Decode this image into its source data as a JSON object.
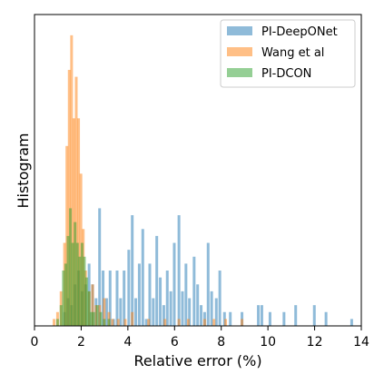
{
  "chart_data": {
    "type": "bar",
    "title": "",
    "xlabel": "Relative error (%)",
    "ylabel": "Histogram",
    "xlim": [
      0,
      14
    ],
    "ylim": [
      0,
      45
    ],
    "x_ticks": [
      "0",
      "2",
      "4",
      "6",
      "8",
      "10",
      "12",
      "14"
    ],
    "x_tick_values": [
      0,
      2,
      4,
      6,
      8,
      10,
      12,
      14
    ],
    "grid": false,
    "legend_position": "top-right",
    "bin_width": 0.14,
    "series": [
      {
        "name": "PI-DeepONet",
        "color": "#1f77b4",
        "bins": [
          {
            "x": 1.3,
            "v": 2
          },
          {
            "x": 1.45,
            "v": 4
          },
          {
            "x": 1.6,
            "v": 3
          },
          {
            "x": 1.75,
            "v": 6
          },
          {
            "x": 1.9,
            "v": 8
          },
          {
            "x": 2.05,
            "v": 5
          },
          {
            "x": 2.2,
            "v": 6
          },
          {
            "x": 2.35,
            "v": 9
          },
          {
            "x": 2.5,
            "v": 6
          },
          {
            "x": 2.65,
            "v": 4
          },
          {
            "x": 2.8,
            "v": 17
          },
          {
            "x": 2.95,
            "v": 8
          },
          {
            "x": 3.1,
            "v": 4
          },
          {
            "x": 3.25,
            "v": 8
          },
          {
            "x": 3.4,
            "v": 1
          },
          {
            "x": 3.55,
            "v": 8
          },
          {
            "x": 3.7,
            "v": 4
          },
          {
            "x": 3.85,
            "v": 8
          },
          {
            "x": 4.05,
            "v": 11
          },
          {
            "x": 4.2,
            "v": 16
          },
          {
            "x": 4.35,
            "v": 4
          },
          {
            "x": 4.5,
            "v": 9
          },
          {
            "x": 4.65,
            "v": 14
          },
          {
            "x": 4.8,
            "v": 1
          },
          {
            "x": 4.95,
            "v": 9
          },
          {
            "x": 5.1,
            "v": 4
          },
          {
            "x": 5.25,
            "v": 13
          },
          {
            "x": 5.4,
            "v": 7
          },
          {
            "x": 5.55,
            "v": 3
          },
          {
            "x": 5.7,
            "v": 8
          },
          {
            "x": 5.85,
            "v": 5
          },
          {
            "x": 6.0,
            "v": 12
          },
          {
            "x": 6.2,
            "v": 16
          },
          {
            "x": 6.35,
            "v": 5
          },
          {
            "x": 6.5,
            "v": 9
          },
          {
            "x": 6.65,
            "v": 4
          },
          {
            "x": 6.85,
            "v": 10
          },
          {
            "x": 7.0,
            "v": 6
          },
          {
            "x": 7.15,
            "v": 3
          },
          {
            "x": 7.3,
            "v": 2
          },
          {
            "x": 7.45,
            "v": 12
          },
          {
            "x": 7.6,
            "v": 5
          },
          {
            "x": 7.8,
            "v": 4
          },
          {
            "x": 7.95,
            "v": 8
          },
          {
            "x": 8.15,
            "v": 2
          },
          {
            "x": 8.4,
            "v": 2
          },
          {
            "x": 8.9,
            "v": 2
          },
          {
            "x": 9.6,
            "v": 3
          },
          {
            "x": 9.75,
            "v": 3
          },
          {
            "x": 10.1,
            "v": 2
          },
          {
            "x": 10.7,
            "v": 2
          },
          {
            "x": 11.2,
            "v": 3
          },
          {
            "x": 12.0,
            "v": 3
          },
          {
            "x": 12.5,
            "v": 2
          },
          {
            "x": 13.6,
            "v": 1
          }
        ]
      },
      {
        "name": "Wang et al",
        "color": "#ff7f0e",
        "bins": [
          {
            "x": 0.85,
            "v": 1
          },
          {
            "x": 1.0,
            "v": 2
          },
          {
            "x": 1.15,
            "v": 5
          },
          {
            "x": 1.3,
            "v": 12
          },
          {
            "x": 1.4,
            "v": 26
          },
          {
            "x": 1.5,
            "v": 37
          },
          {
            "x": 1.6,
            "v": 42
          },
          {
            "x": 1.7,
            "v": 30
          },
          {
            "x": 1.8,
            "v": 36
          },
          {
            "x": 1.9,
            "v": 30
          },
          {
            "x": 2.0,
            "v": 22
          },
          {
            "x": 2.1,
            "v": 14
          },
          {
            "x": 2.2,
            "v": 8
          },
          {
            "x": 2.35,
            "v": 5
          },
          {
            "x": 2.5,
            "v": 6
          },
          {
            "x": 2.65,
            "v": 3
          },
          {
            "x": 2.8,
            "v": 3
          },
          {
            "x": 3.0,
            "v": 4
          },
          {
            "x": 3.2,
            "v": 2
          },
          {
            "x": 3.35,
            "v": 1
          },
          {
            "x": 3.6,
            "v": 1
          },
          {
            "x": 3.9,
            "v": 1
          },
          {
            "x": 4.2,
            "v": 2
          },
          {
            "x": 4.9,
            "v": 1
          },
          {
            "x": 5.6,
            "v": 1
          },
          {
            "x": 6.2,
            "v": 1
          },
          {
            "x": 6.6,
            "v": 1
          },
          {
            "x": 7.3,
            "v": 1
          },
          {
            "x": 7.7,
            "v": 1
          },
          {
            "x": 8.2,
            "v": 1
          },
          {
            "x": 8.9,
            "v": 1
          }
        ]
      },
      {
        "name": "PI-DCON",
        "color": "#2ca02c",
        "bins": [
          {
            "x": 1.0,
            "v": 1
          },
          {
            "x": 1.15,
            "v": 3
          },
          {
            "x": 1.25,
            "v": 8
          },
          {
            "x": 1.35,
            "v": 9
          },
          {
            "x": 1.45,
            "v": 13
          },
          {
            "x": 1.55,
            "v": 17
          },
          {
            "x": 1.65,
            "v": 12
          },
          {
            "x": 1.75,
            "v": 15
          },
          {
            "x": 1.85,
            "v": 12
          },
          {
            "x": 1.95,
            "v": 10
          },
          {
            "x": 2.05,
            "v": 12
          },
          {
            "x": 2.15,
            "v": 10
          },
          {
            "x": 2.25,
            "v": 7
          },
          {
            "x": 2.35,
            "v": 5
          },
          {
            "x": 2.45,
            "v": 2
          },
          {
            "x": 2.55,
            "v": 2
          },
          {
            "x": 2.7,
            "v": 3
          },
          {
            "x": 2.85,
            "v": 2
          },
          {
            "x": 3.0,
            "v": 1
          },
          {
            "x": 3.2,
            "v": 1
          }
        ]
      }
    ]
  }
}
